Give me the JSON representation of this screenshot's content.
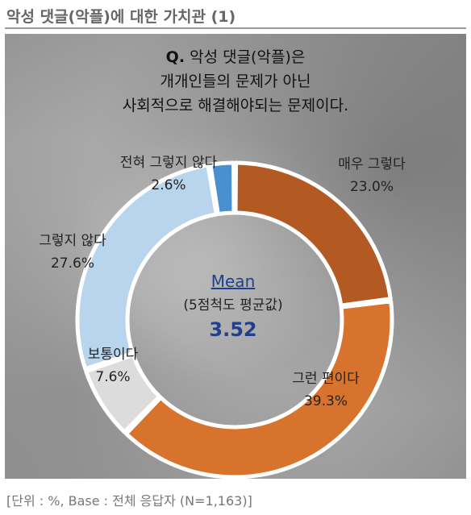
{
  "page_title": "악성 댓글(악플)에 대한 가치관 (1)",
  "question": {
    "label": "Q.",
    "line1": "악성 댓글(악플)은",
    "line2": "개개인들의 문제가 아닌",
    "line3": "사회적으로 해결해야되는 문제이다."
  },
  "center": {
    "mean_label": "Mean",
    "subtitle": "(5점척도 평균값)",
    "value": "3.52"
  },
  "footnote": "[단위 : %, Base : 전체 응답자 (N=1,163)]",
  "colors": {
    "mean_value": "#1f3f8f",
    "mean_label": "#1f3f8f"
  },
  "chart_data": {
    "type": "pie",
    "donut": true,
    "categories": [
      "매우 그렇다",
      "그런 편이다",
      "보통이다",
      "그렇지 않다",
      "전혀 그렇지 않다"
    ],
    "values": [
      23.0,
      39.3,
      7.6,
      27.6,
      2.6
    ],
    "value_labels": [
      "23.0%",
      "39.3%",
      "7.6%",
      "27.6%",
      "2.6%"
    ],
    "colors": [
      "#b25a22",
      "#d7732c",
      "#dcdcdc",
      "#b9d5ee",
      "#4a90d0"
    ],
    "start": "top, clockwise"
  }
}
